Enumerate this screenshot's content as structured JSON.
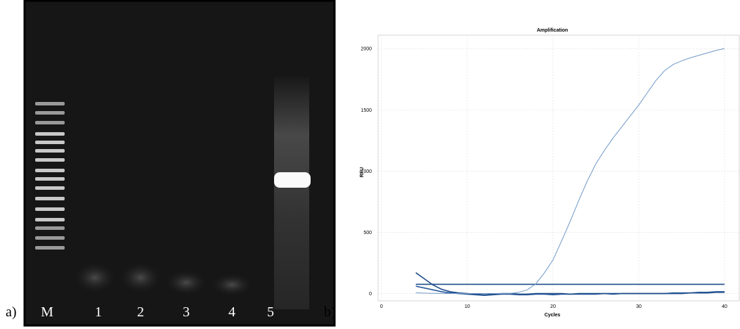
{
  "gel": {
    "panel_label": "a)",
    "lanes": [
      "M",
      "1",
      "2",
      "3",
      "4",
      "5"
    ]
  },
  "chart_data": {
    "type": "line",
    "panel_label": "b)",
    "title": "Amplification",
    "x_label": "Cycles",
    "y_label": "RFU",
    "x": [
      4,
      5,
      6,
      7,
      8,
      9,
      10,
      11,
      12,
      13,
      14,
      15,
      16,
      17,
      18,
      19,
      20,
      21,
      22,
      23,
      24,
      25,
      26,
      27,
      28,
      29,
      30,
      31,
      32,
      33,
      34,
      35,
      36,
      37,
      38,
      39,
      40
    ],
    "series": [
      {
        "color": "#6f98c8",
        "values": [
          5,
          3,
          2,
          1,
          0,
          0,
          0,
          0,
          0,
          0,
          0,
          0,
          10,
          30,
          80,
          170,
          275,
          430,
          590,
          760,
          920,
          1060,
          1170,
          1270,
          1360,
          1450,
          1540,
          1640,
          1740,
          1820,
          1870,
          1900,
          1925,
          1945,
          1965,
          1985,
          2000
        ]
      },
      {
        "color": "#1f4e8c",
        "values": [
          75,
          75,
          75,
          75,
          75,
          75,
          75,
          75,
          75,
          75,
          75,
          75,
          75,
          75,
          75,
          75,
          75,
          75,
          75,
          75,
          75,
          75,
          75,
          75,
          75,
          75,
          75,
          75,
          75,
          75,
          75,
          75,
          75,
          75,
          75,
          75,
          75
        ]
      },
      {
        "color": "#1f4e8c",
        "values": [
          170,
          120,
          70,
          35,
          15,
          5,
          0,
          -5,
          -10,
          -5,
          0,
          0,
          -5,
          -5,
          0,
          0,
          0,
          0,
          -5,
          0,
          0,
          0,
          0,
          0,
          0,
          0,
          0,
          0,
          0,
          0,
          0,
          0,
          5,
          5,
          5,
          10,
          10
        ]
      },
      {
        "color": "#2a5a9a",
        "values": [
          60,
          45,
          30,
          15,
          5,
          0,
          -5,
          -10,
          -15,
          -10,
          -5,
          -5,
          -10,
          -10,
          -5,
          -5,
          -10,
          -5,
          -5,
          -5,
          -5,
          -5,
          0,
          -5,
          0,
          0,
          0,
          0,
          0,
          0,
          5,
          5,
          5,
          10,
          10,
          15,
          15
        ]
      }
    ],
    "xlim": [
      -0.4,
      41.8
    ],
    "ylim": [
      -60,
      2110
    ],
    "xticks": [
      0,
      10,
      20,
      30,
      40
    ],
    "yticks": [
      0,
      500,
      1000,
      1500,
      2000
    ],
    "grid": true
  }
}
